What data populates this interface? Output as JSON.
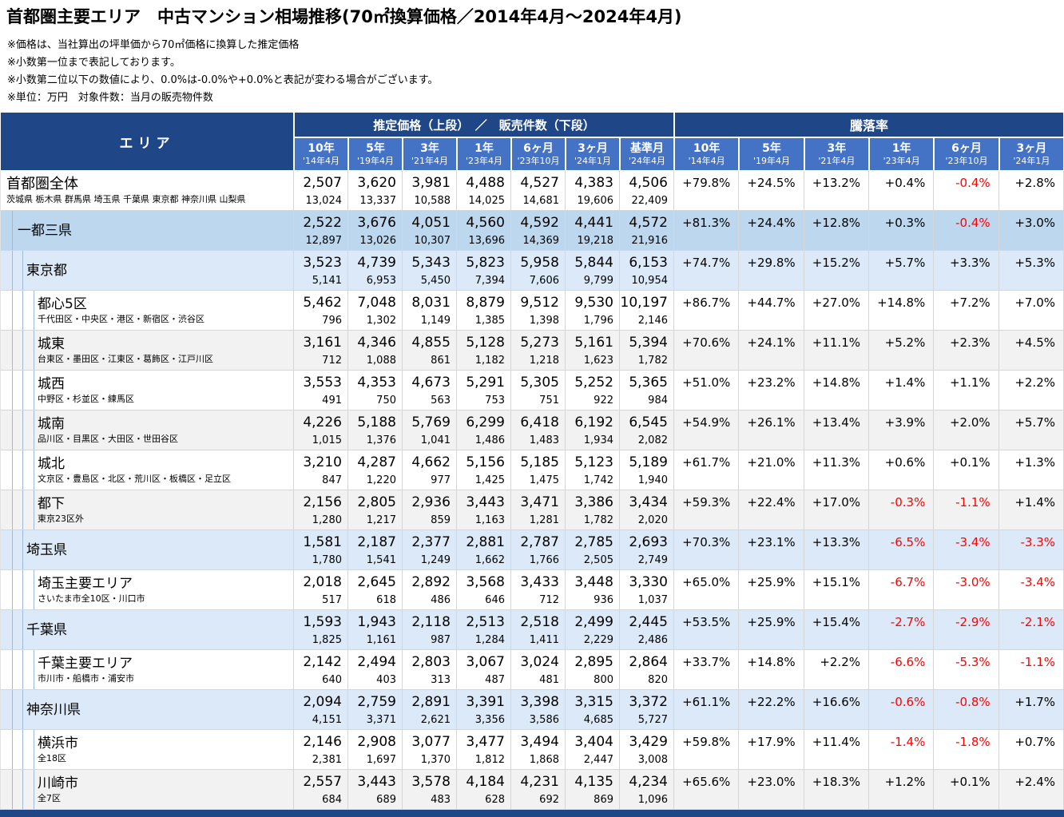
{
  "colors": {
    "header_dark": "#1F4788",
    "header_mid": "#4472C4",
    "row_blue_strong": "#BDD7EE",
    "row_blue_light": "#DCE9F8",
    "row_gray": "#F2F2F2",
    "negative_rate": "#FF0000"
  },
  "title": "首都圏主要エリア　中古マンション相場推移(70㎡換算価格／2014年4月～2024年4月)",
  "notes": [
    "※価格は、当社算出の坪単価から70㎡価格に換算した推定価格",
    "※小数第一位まで表記しております。",
    "※小数第二位以下の数値により、0.0%は-0.0%や+0.0%と表記が変わる場合がございます。",
    "※単位：万円　対象件数：当月の販売物件数"
  ],
  "table": {
    "area_header": "エリア",
    "price_header": "推定価格（上段）　／　販売件数（下段）",
    "rate_header": "騰落率",
    "columns": [
      {
        "label": "10年",
        "sub": "'14年4月"
      },
      {
        "label": "5年",
        "sub": "'19年4月"
      },
      {
        "label": "3年",
        "sub": "'21年4月"
      },
      {
        "label": "1年",
        "sub": "'23年4月"
      },
      {
        "label": "6ヶ月",
        "sub": "'23年10月"
      },
      {
        "label": "3ヶ月",
        "sub": "'24年1月"
      },
      {
        "label": "基準月",
        "sub": "'24年4月"
      }
    ],
    "rate_columns": [
      {
        "label": "10年",
        "sub": "'14年4月"
      },
      {
        "label": "5年",
        "sub": "'19年4月"
      },
      {
        "label": "3年",
        "sub": "'21年4月"
      },
      {
        "label": "1年",
        "sub": "'23年4月"
      },
      {
        "label": "6ヶ月",
        "sub": "'23年10月"
      },
      {
        "label": "3ヶ月",
        "sub": "'24年1月"
      }
    ],
    "rows": [
      {
        "id": "shutoken-zentai",
        "name": "首都圏全体",
        "desc": "茨城県 栃木県 群馬県 埼玉県 千葉県 東京都 神奈川県 山梨県",
        "level": 0,
        "bg": "white",
        "prices": [
          "2,507",
          "3,620",
          "3,981",
          "4,488",
          "4,527",
          "4,383",
          "4,506"
        ],
        "counts": [
          "13,024",
          "13,337",
          "10,588",
          "14,025",
          "14,681",
          "19,606",
          "22,409"
        ],
        "rates": [
          "+79.8%",
          "+24.5%",
          "+13.2%",
          "+0.4%",
          "-0.4%",
          "+2.8%"
        ]
      },
      {
        "id": "itto-sanken",
        "name": "一都三県",
        "desc": "",
        "level": 1,
        "bg": "blue1",
        "prices": [
          "2,522",
          "3,676",
          "4,051",
          "4,560",
          "4,592",
          "4,441",
          "4,572"
        ],
        "counts": [
          "12,897",
          "13,026",
          "10,307",
          "13,696",
          "14,369",
          "19,218",
          "21,916"
        ],
        "rates": [
          "+81.3%",
          "+24.4%",
          "+12.8%",
          "+0.3%",
          "-0.4%",
          "+3.0%"
        ]
      },
      {
        "id": "tokyo",
        "name": "東京都",
        "desc": "",
        "level": 2,
        "bg": "blue2",
        "prices": [
          "3,523",
          "4,739",
          "5,343",
          "5,823",
          "5,958",
          "5,844",
          "6,153"
        ],
        "counts": [
          "5,141",
          "6,953",
          "5,450",
          "7,394",
          "7,606",
          "9,799",
          "10,954"
        ],
        "rates": [
          "+74.7%",
          "+29.8%",
          "+15.2%",
          "+5.7%",
          "+3.3%",
          "+5.3%"
        ]
      },
      {
        "id": "toshin-5ku",
        "name": "都心5区",
        "desc": "千代田区・中央区・港区・新宿区・渋谷区",
        "level": 3,
        "bg": "white",
        "prices": [
          "5,462",
          "7,048",
          "8,031",
          "8,879",
          "9,512",
          "9,530",
          "10,197"
        ],
        "counts": [
          "796",
          "1,302",
          "1,149",
          "1,385",
          "1,398",
          "1,796",
          "2,146"
        ],
        "rates": [
          "+86.7%",
          "+44.7%",
          "+27.0%",
          "+14.8%",
          "+7.2%",
          "+7.0%"
        ]
      },
      {
        "id": "joto",
        "name": "城東",
        "desc": "台東区・墨田区・江東区・葛飾区・江戸川区",
        "level": 3,
        "bg": "gray",
        "prices": [
          "3,161",
          "4,346",
          "4,855",
          "5,128",
          "5,273",
          "5,161",
          "5,394"
        ],
        "counts": [
          "712",
          "1,088",
          "861",
          "1,182",
          "1,218",
          "1,623",
          "1,782"
        ],
        "rates": [
          "+70.6%",
          "+24.1%",
          "+11.1%",
          "+5.2%",
          "+2.3%",
          "+4.5%"
        ]
      },
      {
        "id": "josai",
        "name": "城西",
        "desc": "中野区・杉並区・練馬区",
        "level": 3,
        "bg": "white",
        "prices": [
          "3,553",
          "4,353",
          "4,673",
          "5,291",
          "5,305",
          "5,252",
          "5,365"
        ],
        "counts": [
          "491",
          "750",
          "563",
          "753",
          "751",
          "922",
          "984"
        ],
        "rates": [
          "+51.0%",
          "+23.2%",
          "+14.8%",
          "+1.4%",
          "+1.1%",
          "+2.2%"
        ]
      },
      {
        "id": "jonan",
        "name": "城南",
        "desc": "品川区・目黒区・大田区・世田谷区",
        "level": 3,
        "bg": "gray",
        "prices": [
          "4,226",
          "5,188",
          "5,769",
          "6,299",
          "6,418",
          "6,192",
          "6,545"
        ],
        "counts": [
          "1,015",
          "1,376",
          "1,041",
          "1,486",
          "1,483",
          "1,934",
          "2,082"
        ],
        "rates": [
          "+54.9%",
          "+26.1%",
          "+13.4%",
          "+3.9%",
          "+2.0%",
          "+5.7%"
        ]
      },
      {
        "id": "johoku",
        "name": "城北",
        "desc": "文京区・豊島区・北区・荒川区・板橋区・足立区",
        "level": 3,
        "bg": "white",
        "prices": [
          "3,210",
          "4,287",
          "4,662",
          "5,156",
          "5,185",
          "5,123",
          "5,189"
        ],
        "counts": [
          "847",
          "1,220",
          "977",
          "1,425",
          "1,475",
          "1,742",
          "1,940"
        ],
        "rates": [
          "+61.7%",
          "+21.0%",
          "+11.3%",
          "+0.6%",
          "+0.1%",
          "+1.3%"
        ]
      },
      {
        "id": "toka",
        "name": "都下",
        "desc": "東京23区外",
        "level": 3,
        "bg": "gray",
        "prices": [
          "2,156",
          "2,805",
          "2,936",
          "3,443",
          "3,471",
          "3,386",
          "3,434"
        ],
        "counts": [
          "1,280",
          "1,217",
          "859",
          "1,163",
          "1,281",
          "1,782",
          "2,020"
        ],
        "rates": [
          "+59.3%",
          "+22.4%",
          "+17.0%",
          "-0.3%",
          "-1.1%",
          "+1.4%"
        ]
      },
      {
        "id": "saitama",
        "name": "埼玉県",
        "desc": "",
        "level": 2,
        "bg": "blue2",
        "prices": [
          "1,581",
          "2,187",
          "2,377",
          "2,881",
          "2,787",
          "2,785",
          "2,693"
        ],
        "counts": [
          "1,780",
          "1,541",
          "1,249",
          "1,662",
          "1,766",
          "2,505",
          "2,749"
        ],
        "rates": [
          "+70.3%",
          "+23.1%",
          "+13.3%",
          "-6.5%",
          "-3.4%",
          "-3.3%"
        ]
      },
      {
        "id": "saitama-shuyo",
        "name": "埼玉主要エリア",
        "desc": "さいたま市全10区・川口市",
        "level": 3,
        "bg": "white",
        "prices": [
          "2,018",
          "2,645",
          "2,892",
          "3,568",
          "3,433",
          "3,448",
          "3,330"
        ],
        "counts": [
          "517",
          "618",
          "486",
          "646",
          "712",
          "936",
          "1,037"
        ],
        "rates": [
          "+65.0%",
          "+25.9%",
          "+15.1%",
          "-6.7%",
          "-3.0%",
          "-3.4%"
        ]
      },
      {
        "id": "chiba",
        "name": "千葉県",
        "desc": "",
        "level": 2,
        "bg": "blue2",
        "prices": [
          "1,593",
          "1,943",
          "2,118",
          "2,513",
          "2,518",
          "2,499",
          "2,445"
        ],
        "counts": [
          "1,825",
          "1,161",
          "987",
          "1,284",
          "1,411",
          "2,229",
          "2,486"
        ],
        "rates": [
          "+53.5%",
          "+25.9%",
          "+15.4%",
          "-2.7%",
          "-2.9%",
          "-2.1%"
        ]
      },
      {
        "id": "chiba-shuyo",
        "name": "千葉主要エリア",
        "desc": "市川市・船橋市・浦安市",
        "level": 3,
        "bg": "white",
        "prices": [
          "2,142",
          "2,494",
          "2,803",
          "3,067",
          "3,024",
          "2,895",
          "2,864"
        ],
        "counts": [
          "640",
          "403",
          "313",
          "487",
          "481",
          "800",
          "820"
        ],
        "rates": [
          "+33.7%",
          "+14.8%",
          "+2.2%",
          "-6.6%",
          "-5.3%",
          "-1.1%"
        ]
      },
      {
        "id": "kanagawa",
        "name": "神奈川県",
        "desc": "",
        "level": 2,
        "bg": "blue2",
        "prices": [
          "2,094",
          "2,759",
          "2,891",
          "3,391",
          "3,398",
          "3,315",
          "3,372"
        ],
        "counts": [
          "4,151",
          "3,371",
          "2,621",
          "3,356",
          "3,586",
          "4,685",
          "5,727"
        ],
        "rates": [
          "+61.1%",
          "+22.2%",
          "+16.6%",
          "-0.6%",
          "-0.8%",
          "+1.7%"
        ]
      },
      {
        "id": "yokohama",
        "name": "横浜市",
        "desc": "全18区",
        "level": 3,
        "bg": "white",
        "prices": [
          "2,146",
          "2,908",
          "3,077",
          "3,477",
          "3,494",
          "3,404",
          "3,429"
        ],
        "counts": [
          "2,381",
          "1,697",
          "1,370",
          "1,812",
          "1,868",
          "2,447",
          "3,008"
        ],
        "rates": [
          "+59.8%",
          "+17.9%",
          "+11.4%",
          "-1.4%",
          "-1.8%",
          "+0.7%"
        ]
      },
      {
        "id": "kawasaki",
        "name": "川崎市",
        "desc": "全7区",
        "level": 3,
        "bg": "gray",
        "prices": [
          "2,557",
          "3,443",
          "3,578",
          "4,184",
          "4,231",
          "4,135",
          "4,234"
        ],
        "counts": [
          "684",
          "689",
          "483",
          "628",
          "692",
          "869",
          "1,096"
        ],
        "rates": [
          "+65.6%",
          "+23.0%",
          "+18.3%",
          "+1.2%",
          "+0.1%",
          "+2.4%"
        ]
      }
    ]
  }
}
